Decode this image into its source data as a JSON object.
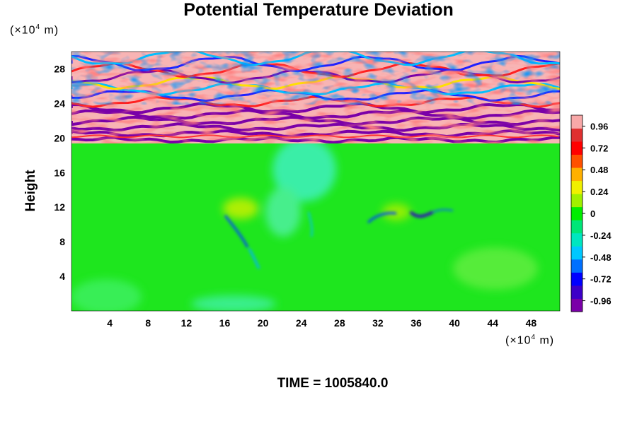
{
  "chart_data": {
    "type": "heatmap",
    "title": "Potential Temperature Deviation",
    "ylabel": "Height",
    "y_unit_prefix": "(×10",
    "x_unit_prefix": "(×10",
    "unit_exponent": "4",
    "unit_suffix": " m)",
    "footer": "TIME = 1005840.0",
    "x_ticks": [
      4,
      8,
      12,
      16,
      20,
      24,
      28,
      32,
      36,
      40,
      44,
      48
    ],
    "y_ticks": [
      4,
      8,
      12,
      16,
      20,
      24,
      28
    ],
    "xlim": [
      0,
      51
    ],
    "ylim": [
      0,
      30
    ],
    "colorbar_ticks": [
      "0.96",
      "0.72",
      "0.48",
      "0.24",
      "0",
      "-0.24",
      "-0.48",
      "-0.72",
      "-0.96"
    ],
    "colorbar_range": [
      -1.08,
      1.08
    ],
    "colorbar_colors": [
      "#7a00a8",
      "#3c00c8",
      "#0000ff",
      "#0070ff",
      "#00c8ff",
      "#00e6c0",
      "#00e678",
      "#00ee00",
      "#a0f000",
      "#f0f000",
      "#ffb000",
      "#ff5000",
      "#ff0000",
      "#e03030",
      "#f8a8a8"
    ],
    "background_colors": {
      "lower_field": "#1ee61e",
      "upper_stripe_a": "#f8b4b4",
      "upper_stripe_b": "#7a00a8"
    }
  }
}
